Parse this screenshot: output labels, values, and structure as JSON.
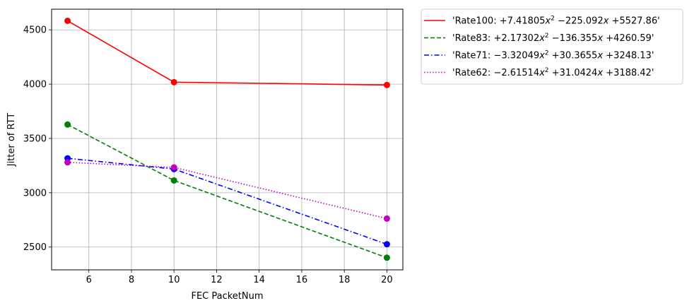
{
  "chart_data": {
    "type": "line",
    "xlabel": "FEC PacketNum",
    "ylabel": "Jitter of RTT",
    "x": [
      5,
      10,
      20
    ],
    "xlim": [
      4.25,
      20.75
    ],
    "ylim": [
      2290,
      4690
    ],
    "xticks": [
      6,
      8,
      10,
      12,
      14,
      16,
      18,
      20
    ],
    "yticks": [
      2500,
      3000,
      3500,
      4000,
      4500
    ],
    "grid": true,
    "legend_position": "outside-top-right",
    "series": [
      {
        "name": "'Rate100: +7.41805x² − 225.092x + 5527.86'",
        "legend": {
          "prefix": "'Rate100: ",
          "a": "+7.41805",
          "b": "−225.092",
          "c": "+5527.86",
          "suffix": "'"
        },
        "color": "#ff0000",
        "dash": "solid",
        "values": [
          4583,
          4018,
          3992
        ]
      },
      {
        "name": "'Rate83: +2.17302x² − 136.355x + 4260.59'",
        "legend": {
          "prefix": "'Rate83: ",
          "a": "+2.17302",
          "b": "−136.355",
          "c": "+4260.59",
          "suffix": "'"
        },
        "color": "#008000",
        "dash": "dashed",
        "values": [
          3628,
          3113,
          2402
        ]
      },
      {
        "name": "'Rate71: −3.32049x² + 30.3655x + 3248.13'",
        "legend": {
          "prefix": "'Rate71: ",
          "a": "−3.32049",
          "b": "+30.3655",
          "c": "+3248.13",
          "suffix": "'"
        },
        "color": "#0000ff",
        "dash": "dashdot",
        "values": [
          3317,
          3218,
          2526
        ]
      },
      {
        "name": "'Rate62: −2.61514x² + 31.0424x + 3188.42'",
        "legend": {
          "prefix": "'Rate62: ",
          "a": "−2.61514",
          "b": "+31.0424",
          "c": "+3188.42",
          "suffix": "'"
        },
        "color": "#bf00bf",
        "dash": "dotted",
        "values": [
          3280,
          3233,
          2762
        ]
      }
    ]
  }
}
